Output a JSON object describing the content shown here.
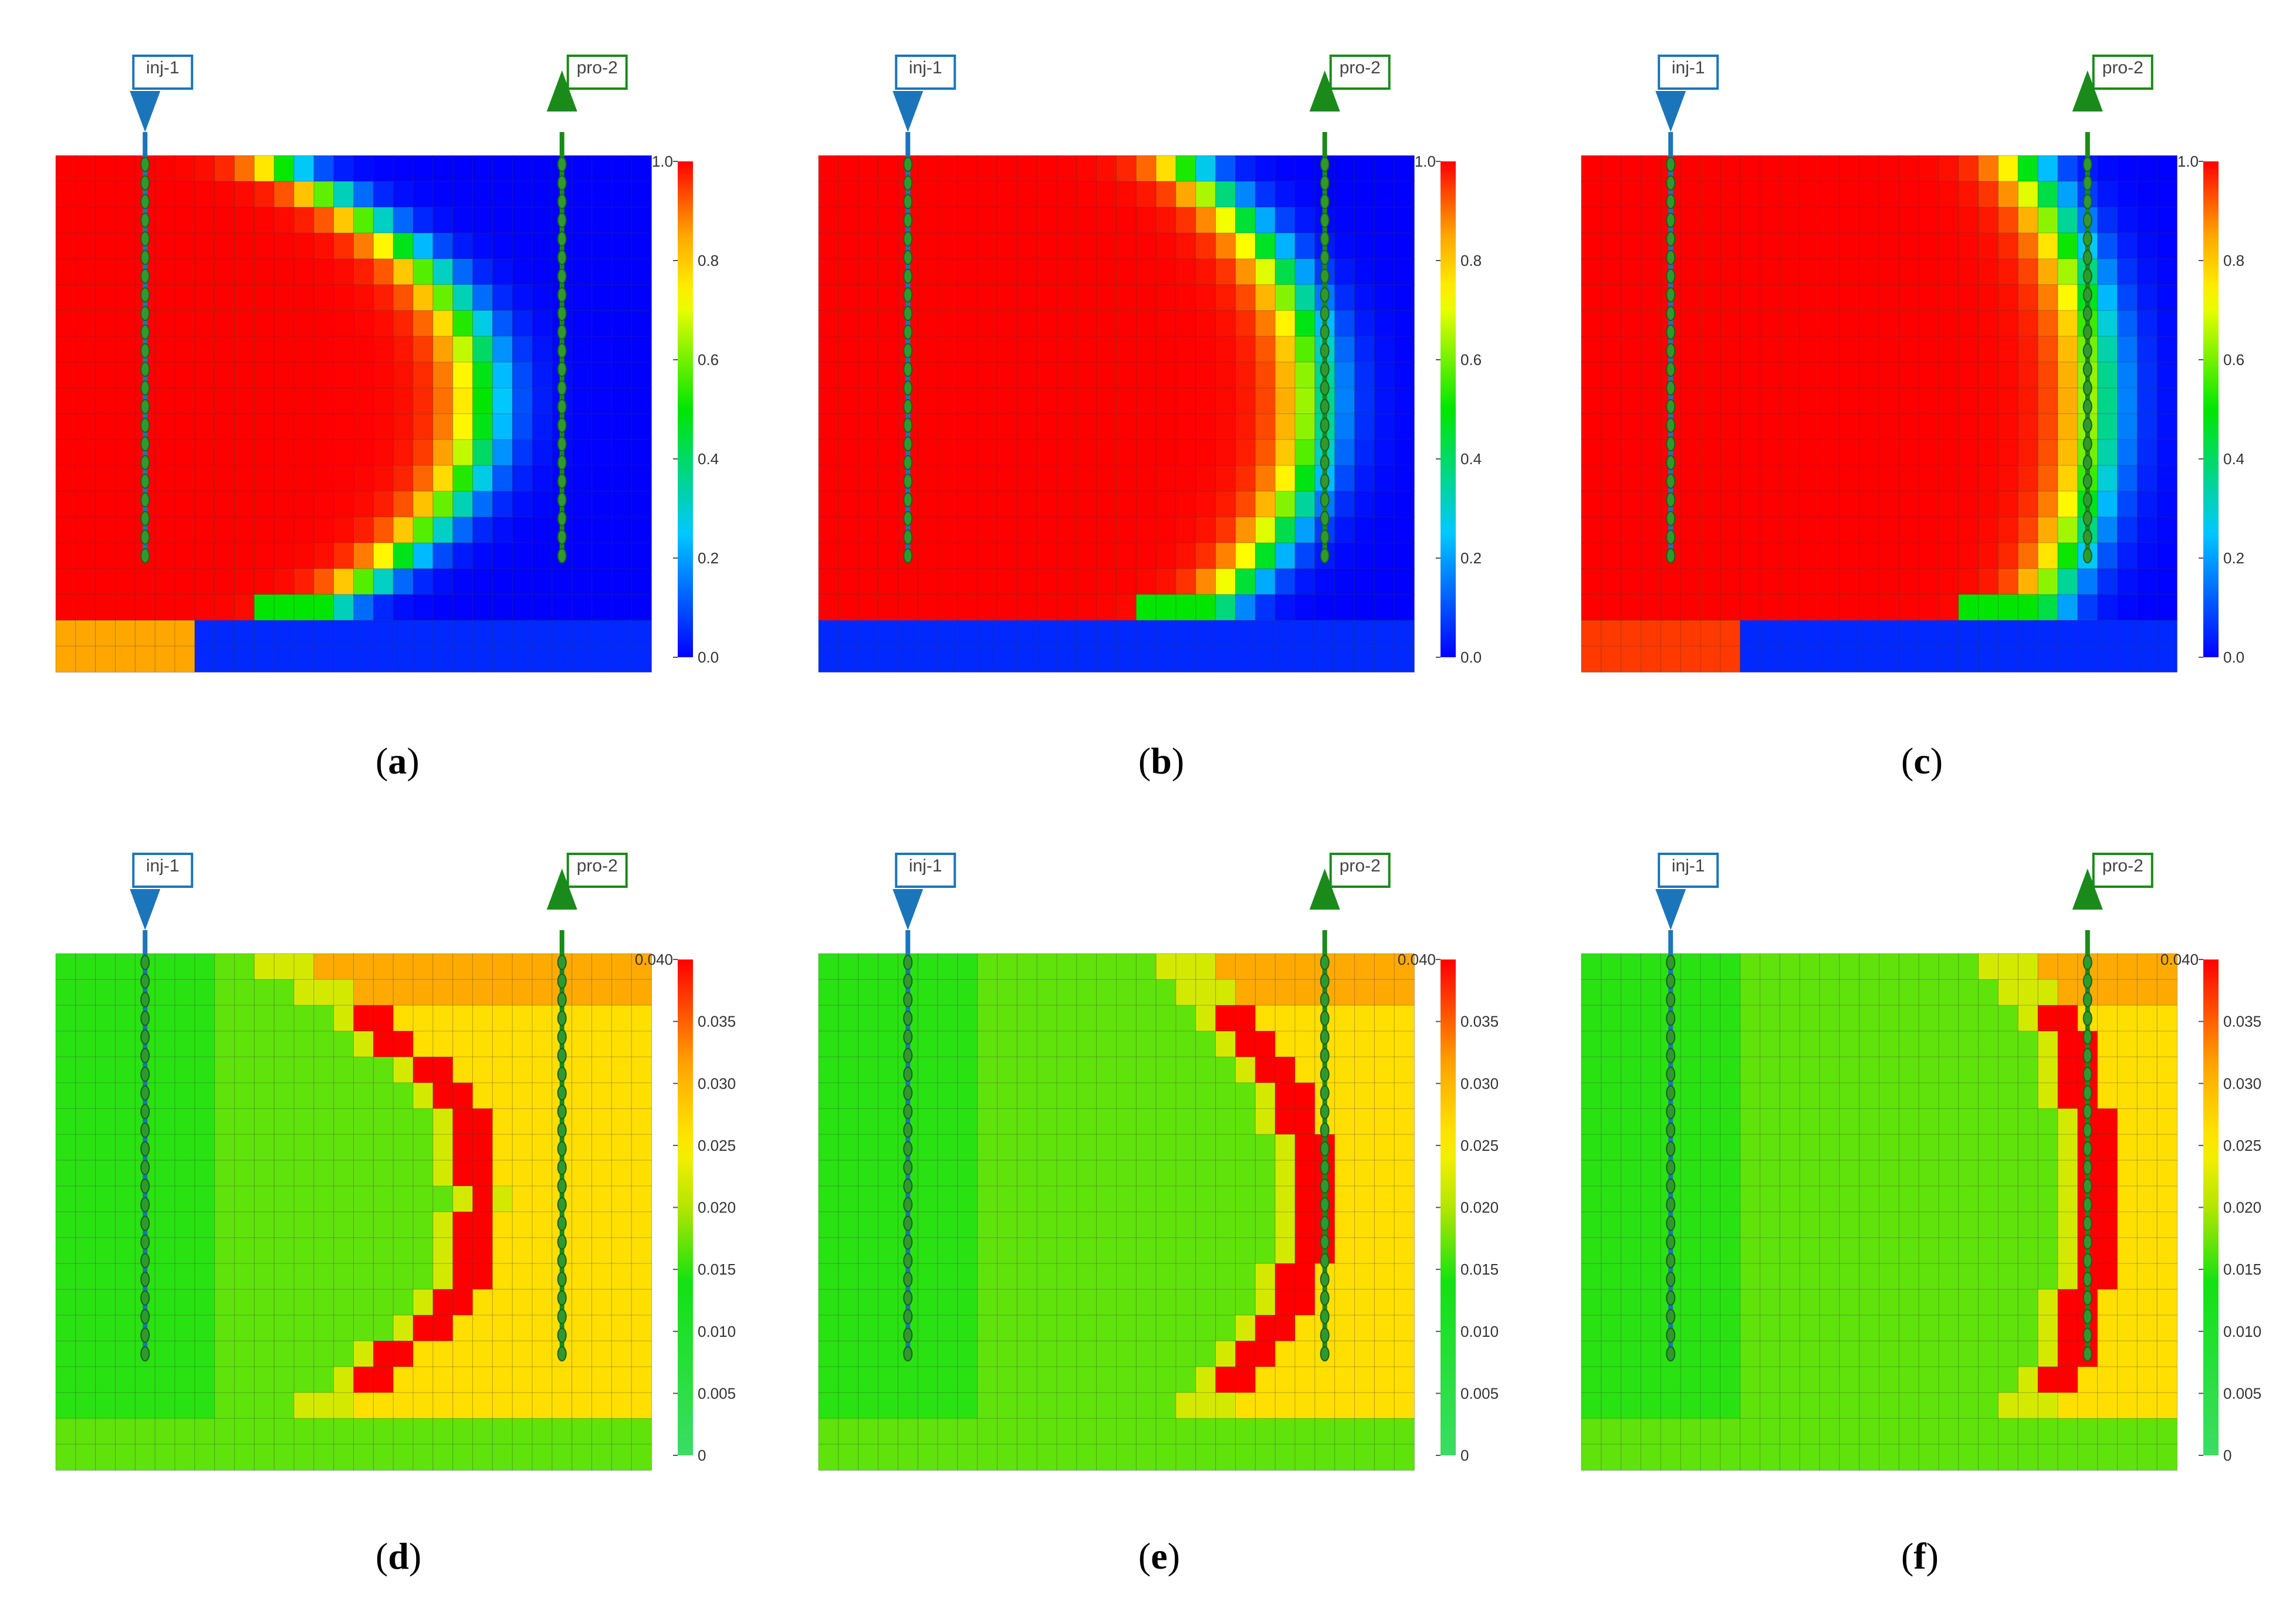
{
  "figure": {
    "panels": [
      {
        "id": "a",
        "label": "a",
        "field": "saturation",
        "stage": 0,
        "wells": [
          "inj-1",
          "pro-2"
        ],
        "colorbar": {
          "ticks": [
            "1.0",
            "0.8",
            "0.6",
            "0.4",
            "0.2",
            "0.0"
          ]
        }
      },
      {
        "id": "b",
        "label": "b",
        "field": "saturation",
        "stage": 1,
        "wells": [
          "inj-1",
          "pro-2"
        ],
        "colorbar": {
          "ticks": [
            "1.0",
            "0.8",
            "0.6",
            "0.4",
            "0.2",
            "0.0"
          ]
        }
      },
      {
        "id": "c",
        "label": "c",
        "field": "saturation",
        "stage": 2,
        "wells": [
          "inj-1",
          "pro-2"
        ],
        "colorbar": {
          "ticks": [
            "1.0",
            "0.8",
            "0.6",
            "0.4",
            "0.2",
            "0.0"
          ]
        }
      },
      {
        "id": "d",
        "label": "d",
        "field": "concentration",
        "stage": 0,
        "wells": [
          "inj-1",
          "pro-2"
        ],
        "colorbar": {
          "ticks": [
            "0.040",
            "0.035",
            "0.030",
            "0.025",
            "0.020",
            "0.015",
            "0.010",
            "0.005",
            "0"
          ]
        }
      },
      {
        "id": "e",
        "label": "e",
        "field": "concentration",
        "stage": 1,
        "wells": [
          "inj-1",
          "pro-2"
        ],
        "colorbar": {
          "ticks": [
            "0.040",
            "0.035",
            "0.030",
            "0.025",
            "0.020",
            "0.015",
            "0.010",
            "0.005",
            "0"
          ]
        }
      },
      {
        "id": "f",
        "label": "f",
        "field": "concentration",
        "stage": 2,
        "wells": [
          "inj-1",
          "pro-2"
        ],
        "colorbar": {
          "ticks": [
            "0.040",
            "0.035",
            "0.030",
            "0.025",
            "0.020",
            "0.015",
            "0.010",
            "0.005",
            "0"
          ]
        }
      }
    ],
    "colors": {
      "injector": "#1b75bb",
      "producer": "#1a8a1a",
      "perforation": "#2e9a2e",
      "gridline": "#3a3a3a"
    }
  }
}
